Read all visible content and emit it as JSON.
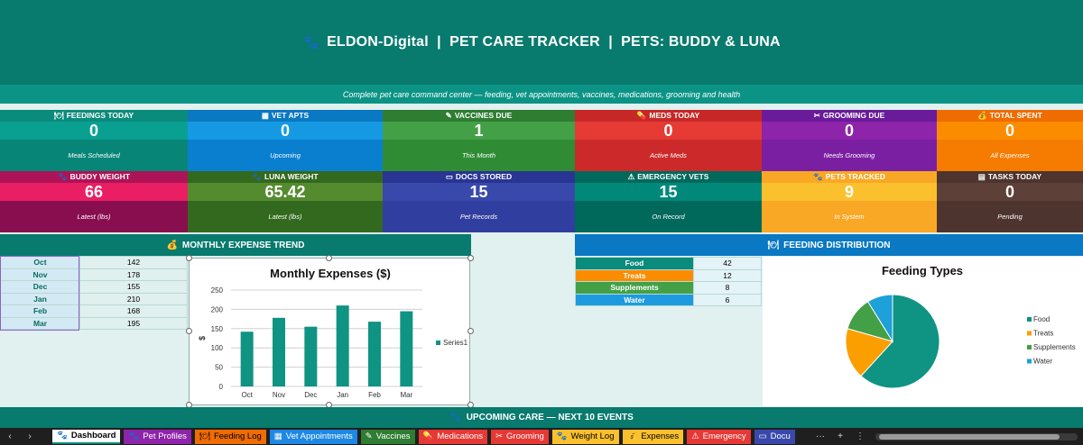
{
  "header": {
    "icon": "paw-icon",
    "title": "ELDON-Digital  |  PET CARE TRACKER  |  PETS: BUDDY & LUNA"
  },
  "subheader": "Complete pet care command center — feeding, vet appointments, vaccines, medications, grooming and health",
  "kpi_row1": [
    {
      "icon": "🍽",
      "label": "FEEDINGS TODAY",
      "value": "0",
      "caption": "Meals Scheduled",
      "top": "#0a8b7b",
      "mid": "#0aa091",
      "bot": "#078577"
    },
    {
      "icon": "▦",
      "label": "VET APTS",
      "value": "0",
      "caption": "Upcoming",
      "top": "#0a78c2",
      "mid": "#1599e2",
      "bot": "#0a7fcf"
    },
    {
      "icon": "✎",
      "label": "VACCINES DUE",
      "value": "1",
      "caption": "This Month",
      "top": "#2e7d32",
      "mid": "#44a047",
      "bot": "#2f8c35"
    },
    {
      "icon": "💊",
      "label": "MEDS TODAY",
      "value": "0",
      "caption": "Active Meds",
      "top": "#c62828",
      "mid": "#e63a35",
      "bot": "#cc2a2a"
    },
    {
      "icon": "✂",
      "label": "GROOMING DUE",
      "value": "0",
      "caption": "Needs Grooming",
      "top": "#6a1b9a",
      "mid": "#8e24aa",
      "bot": "#7b1fa2"
    },
    {
      "icon": "💰",
      "label": "TOTAL SPENT",
      "value": "0",
      "caption": "All Expenses",
      "top": "#ef6c00",
      "mid": "#fb8c00",
      "bot": "#f57c00"
    }
  ],
  "kpi_row2": [
    {
      "icon": "🐾",
      "label": "BUDDY WEIGHT",
      "value": "66",
      "caption": "Latest (lbs)",
      "top": "#ad1457",
      "mid": "#e91e63",
      "bot": "#880e4f"
    },
    {
      "icon": "🐾",
      "label": "LUNA WEIGHT",
      "value": "65.42",
      "caption": "Latest (lbs)",
      "top": "#33691e",
      "mid": "#558b2f",
      "bot": "#33691e"
    },
    {
      "icon": "▭",
      "label": "DOCS STORED",
      "value": "15",
      "caption": "Pet Records",
      "top": "#283593",
      "mid": "#3949ab",
      "bot": "#303f9f"
    },
    {
      "icon": "⚠",
      "label": "EMERGENCY VETS",
      "value": "15",
      "caption": "On Record",
      "top": "#00695c",
      "mid": "#00897b",
      "bot": "#00695c"
    },
    {
      "icon": "🐾",
      "label": "PETS TRACKED",
      "value": "9",
      "caption": "In System",
      "top": "#f9a825",
      "mid": "#fbc02d",
      "bot": "#f9a825"
    },
    {
      "icon": "▤",
      "label": "TASKS TODAY",
      "value": "0",
      "caption": "Pending",
      "top": "#4e342e",
      "mid": "#5d4037",
      "bot": "#4e342e"
    }
  ],
  "expense_panel": {
    "icon": "💰",
    "title": "MONTHLY EXPENSE TREND"
  },
  "expense_table": [
    {
      "month": "Oct",
      "value": "142"
    },
    {
      "month": "Nov",
      "value": "178"
    },
    {
      "month": "Dec",
      "value": "155"
    },
    {
      "month": "Jan",
      "value": "210"
    },
    {
      "month": "Feb",
      "value": "168"
    },
    {
      "month": "Mar",
      "value": "195"
    }
  ],
  "feeding_panel": {
    "icon": "🍽",
    "title": "FEEDING DISTRIBUTION"
  },
  "feeding_table": [
    {
      "name": "Food",
      "value": "42",
      "color": "#0a8b7b"
    },
    {
      "name": "Treats",
      "value": "12",
      "color": "#fb8c00"
    },
    {
      "name": "Supplements",
      "value": "8",
      "color": "#43a047"
    },
    {
      "name": "Water",
      "value": "6",
      "color": "#1e9be0"
    }
  ],
  "chart_data": [
    {
      "type": "bar",
      "title": "Monthly Expenses ($)",
      "categories": [
        "Oct",
        "Nov",
        "Dec",
        "Jan",
        "Feb",
        "Mar"
      ],
      "series": [
        {
          "name": "Series1",
          "values": [
            142,
            178,
            155,
            210,
            168,
            195
          ],
          "color": "#0f9383"
        }
      ],
      "ylabel": "$",
      "ylim": [
        0,
        250
      ],
      "yticks": [
        "0",
        "50",
        "100",
        "150",
        "200",
        "250"
      ],
      "grid": true,
      "legend": "right"
    },
    {
      "type": "pie",
      "title": "Feeding Types",
      "categories": [
        "Food",
        "Treats",
        "Supplements",
        "Water"
      ],
      "values": [
        42,
        12,
        8,
        6
      ],
      "colors": [
        "#0f9383",
        "#fb9e00",
        "#43a047",
        "#1ea0d9"
      ],
      "legend": "right"
    }
  ],
  "upcoming": {
    "icon": "🐾",
    "title": "UPCOMING CARE — NEXT 10 EVENTS"
  },
  "tabs": [
    {
      "icon": "🐾",
      "label": "Dashboard",
      "color": "#ffffff",
      "text": "#000000",
      "active": true
    },
    {
      "icon": "🐾",
      "label": "Pet Profiles",
      "color": "#8e24aa",
      "text": "#ffffff"
    },
    {
      "icon": "🍽",
      "label": "Feeding Log",
      "color": "#ef6c00",
      "text": "#000000"
    },
    {
      "icon": "▦",
      "label": "Vet Appointments",
      "color": "#1e88e5",
      "text": "#ffffff"
    },
    {
      "icon": "✎",
      "label": "Vaccines",
      "color": "#2e7d32",
      "text": "#ffffff"
    },
    {
      "icon": "💊",
      "label": "Medications",
      "color": "#e53935",
      "text": "#ffffff"
    },
    {
      "icon": "✂",
      "label": "Grooming",
      "color": "#e53935",
      "text": "#ffffff"
    },
    {
      "icon": "🐾",
      "label": "Weight Log",
      "color": "#fbc02d",
      "text": "#000000"
    },
    {
      "icon": "💰",
      "label": "Expenses",
      "color": "#fbc02d",
      "text": "#000000"
    },
    {
      "icon": "⚠",
      "label": "Emergency",
      "color": "#e53935",
      "text": "#ffffff"
    },
    {
      "icon": "▭",
      "label": "Docu",
      "color": "#3949ab",
      "text": "#ffffff"
    }
  ],
  "tabbar": {
    "prev": "‹",
    "next": "›",
    "more": "···",
    "add": "+",
    "options": "⋮"
  }
}
